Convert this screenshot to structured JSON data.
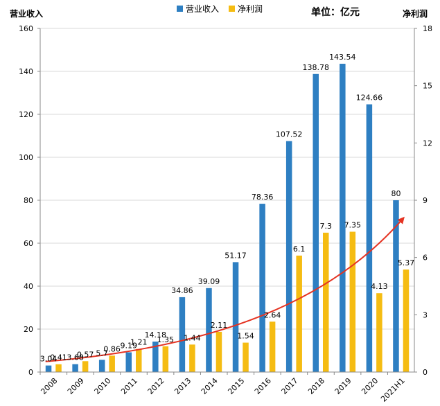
{
  "chart_data": {
    "type": "bar",
    "categories": [
      "2008",
      "2009",
      "2010",
      "2011",
      "2012",
      "2013",
      "2014",
      "2015",
      "2016",
      "2017",
      "2018",
      "2019",
      "2020",
      "2021H1"
    ],
    "series": [
      {
        "name": "营业收入",
        "axis": "left",
        "color": "#2e7fc2",
        "values": [
          3.04,
          3.68,
          5.7,
          9.19,
          14.18,
          34.86,
          39.09,
          51.17,
          78.36,
          107.52,
          138.78,
          143.54,
          124.66,
          80
        ],
        "labels": [
          "3.04",
          "3.68",
          "5.7",
          "9.19",
          "14.18",
          "34.86",
          "39.09",
          "51.17",
          "78.36",
          "107.52",
          "138.78",
          "143.54",
          "124.66",
          "80"
        ]
      },
      {
        "name": "净利润",
        "axis": "right",
        "color": "#f5bc12",
        "values": [
          0.41,
          0.57,
          0.86,
          1.21,
          1.35,
          1.44,
          2.11,
          1.54,
          2.64,
          6.1,
          7.3,
          7.35,
          4.13,
          5.37
        ],
        "labels": [
          "0.41",
          "0.57",
          "0.86",
          "1.21",
          "1.35",
          "1.44",
          "2.11",
          "1.54",
          "2.64",
          "6.1",
          "7.3",
          "7.35",
          "4.13",
          "5.37"
        ]
      }
    ],
    "left_axis": {
      "title": "营业收入",
      "range": [
        0,
        160
      ],
      "ticks": [
        "0",
        "20",
        "40",
        "60",
        "80",
        "100",
        "120",
        "140",
        "160"
      ]
    },
    "right_axis": {
      "title": "净利润",
      "range": [
        0,
        18
      ],
      "ticks": [
        "0",
        "3",
        "6",
        "9",
        "12",
        "15",
        "18"
      ]
    },
    "unit_label": "单位：亿元",
    "legend_position": "top-center",
    "grid": true,
    "trend_arrow": {
      "color": "#e53322"
    }
  }
}
